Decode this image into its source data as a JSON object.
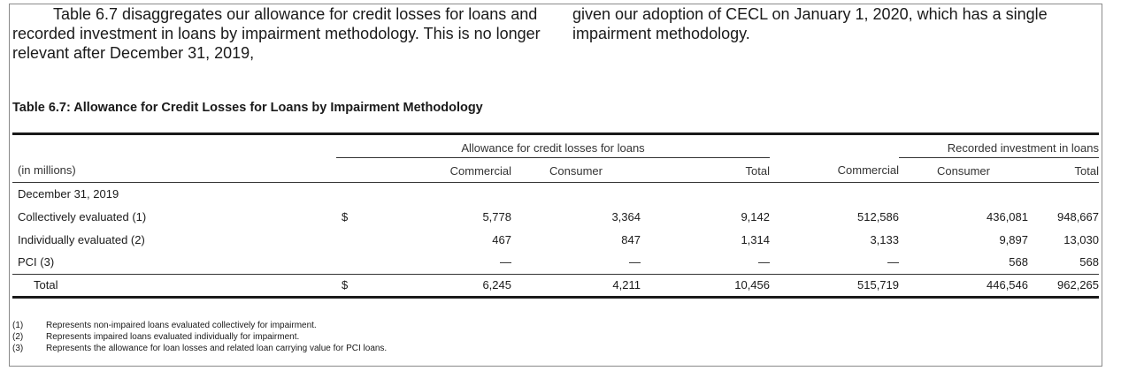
{
  "intro": {
    "left": "Table 6.7 disaggregates our allowance for credit losses for loans and recorded investment in loans by impairment methodology. This is no longer relevant after December 31, 2019,",
    "right": "given our adoption of CECL on January 1, 2020, which has a single impairment methodology."
  },
  "table": {
    "caption": "Table 6.7:  Allowance for Credit Losses for Loans by Impairment Methodology",
    "group_allowance": "Allowance for credit losses for loans",
    "group_recorded": "Recorded investment in loans",
    "unit_label": "(in millions)",
    "columns": [
      "Commercial",
      "Consumer",
      "Total",
      "Commercial",
      "Consumer",
      "Total"
    ],
    "section_label": "December 31, 2019",
    "currency": "$",
    "rows": [
      {
        "label": "Collectively evaluated (1)",
        "currency": "$",
        "values": [
          "5,778",
          "3,364",
          "9,142",
          "512,586",
          "436,081",
          "948,667"
        ]
      },
      {
        "label": "Individually evaluated (2)",
        "currency": "",
        "values": [
          "467",
          "847",
          "1,314",
          "3,133",
          "9,897",
          "13,030"
        ]
      },
      {
        "label": "PCI (3)",
        "currency": "",
        "values": [
          "—",
          "—",
          "—",
          "—",
          "568",
          "568"
        ]
      }
    ],
    "total": {
      "label": "Total",
      "currency": "$",
      "values": [
        "6,245",
        "4,211",
        "10,456",
        "515,719",
        "446,546",
        "962,265"
      ]
    }
  },
  "footnotes": [
    {
      "num": "(1)",
      "text": "Represents non-impaired loans evaluated collectively for impairment."
    },
    {
      "num": "(2)",
      "text": "Represents impaired loans evaluated individually for impairment."
    },
    {
      "num": "(3)",
      "text": "Represents the allowance for loan losses and related loan carrying value for PCI loans."
    }
  ]
}
